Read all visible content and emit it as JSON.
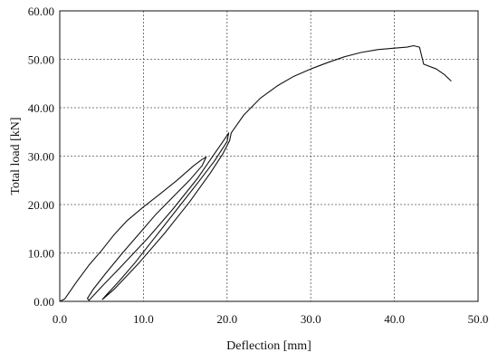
{
  "chart_data": {
    "type": "line",
    "xlabel": "Deflection [mm]",
    "ylabel": "Total load [kN]",
    "xlim": [
      0,
      50
    ],
    "ylim": [
      0,
      60
    ],
    "x_ticks": [
      "0.0",
      "10.0",
      "20.0",
      "30.0",
      "40.0",
      "50.0"
    ],
    "y_ticks": [
      "0.00",
      "10.00",
      "20.00",
      "30.00",
      "40.00",
      "50.00",
      "60.00"
    ],
    "grid": true,
    "series": [
      {
        "points": [
          [
            0.0,
            0.0
          ],
          [
            0.6,
            0.5
          ],
          [
            2.0,
            4.0
          ],
          [
            3.5,
            7.5
          ],
          [
            5.0,
            10.5
          ],
          [
            6.5,
            13.8
          ],
          [
            8.0,
            16.6
          ],
          [
            10.0,
            19.5
          ],
          [
            12.0,
            22.2
          ],
          [
            14.0,
            25.0
          ],
          [
            16.0,
            28.0
          ],
          [
            17.0,
            29.3
          ],
          [
            17.5,
            29.8
          ],
          [
            17.0,
            28.0
          ],
          [
            15.5,
            25.0
          ],
          [
            13.5,
            21.5
          ],
          [
            11.5,
            18.0
          ],
          [
            9.5,
            14.0
          ],
          [
            7.5,
            10.0
          ],
          [
            5.5,
            5.8
          ],
          [
            4.0,
            2.5
          ],
          [
            3.3,
            0.6
          ],
          [
            3.5,
            0.2
          ],
          [
            5.0,
            3.0
          ],
          [
            7.5,
            7.5
          ],
          [
            10.5,
            13.0
          ],
          [
            13.5,
            19.0
          ],
          [
            16.5,
            25.5
          ],
          [
            18.5,
            30.5
          ],
          [
            19.5,
            33.0
          ],
          [
            20.2,
            34.8
          ],
          [
            20.0,
            33.0
          ],
          [
            18.5,
            29.0
          ],
          [
            16.5,
            24.5
          ],
          [
            14.0,
            19.0
          ],
          [
            11.5,
            13.5
          ],
          [
            9.0,
            8.0
          ],
          [
            7.0,
            4.0
          ],
          [
            5.5,
            1.2
          ],
          [
            5.1,
            0.4
          ],
          [
            6.5,
            2.5
          ],
          [
            9.5,
            8.0
          ],
          [
            12.5,
            14.0
          ],
          [
            15.5,
            20.5
          ],
          [
            18.0,
            26.5
          ],
          [
            19.5,
            30.5
          ],
          [
            20.3,
            33.2
          ],
          [
            20.5,
            34.8
          ],
          [
            22.0,
            38.5
          ],
          [
            24.0,
            42.0
          ],
          [
            26.0,
            44.5
          ],
          [
            28.0,
            46.5
          ],
          [
            30.0,
            48.0
          ],
          [
            32.0,
            49.3
          ],
          [
            34.0,
            50.5
          ],
          [
            36.0,
            51.4
          ],
          [
            38.0,
            52.0
          ],
          [
            40.0,
            52.3
          ],
          [
            41.5,
            52.5
          ],
          [
            42.3,
            52.8
          ],
          [
            43.0,
            52.5
          ],
          [
            43.5,
            49.0
          ],
          [
            45.0,
            48.0
          ],
          [
            46.0,
            46.8
          ],
          [
            46.8,
            45.5
          ]
        ]
      }
    ]
  }
}
